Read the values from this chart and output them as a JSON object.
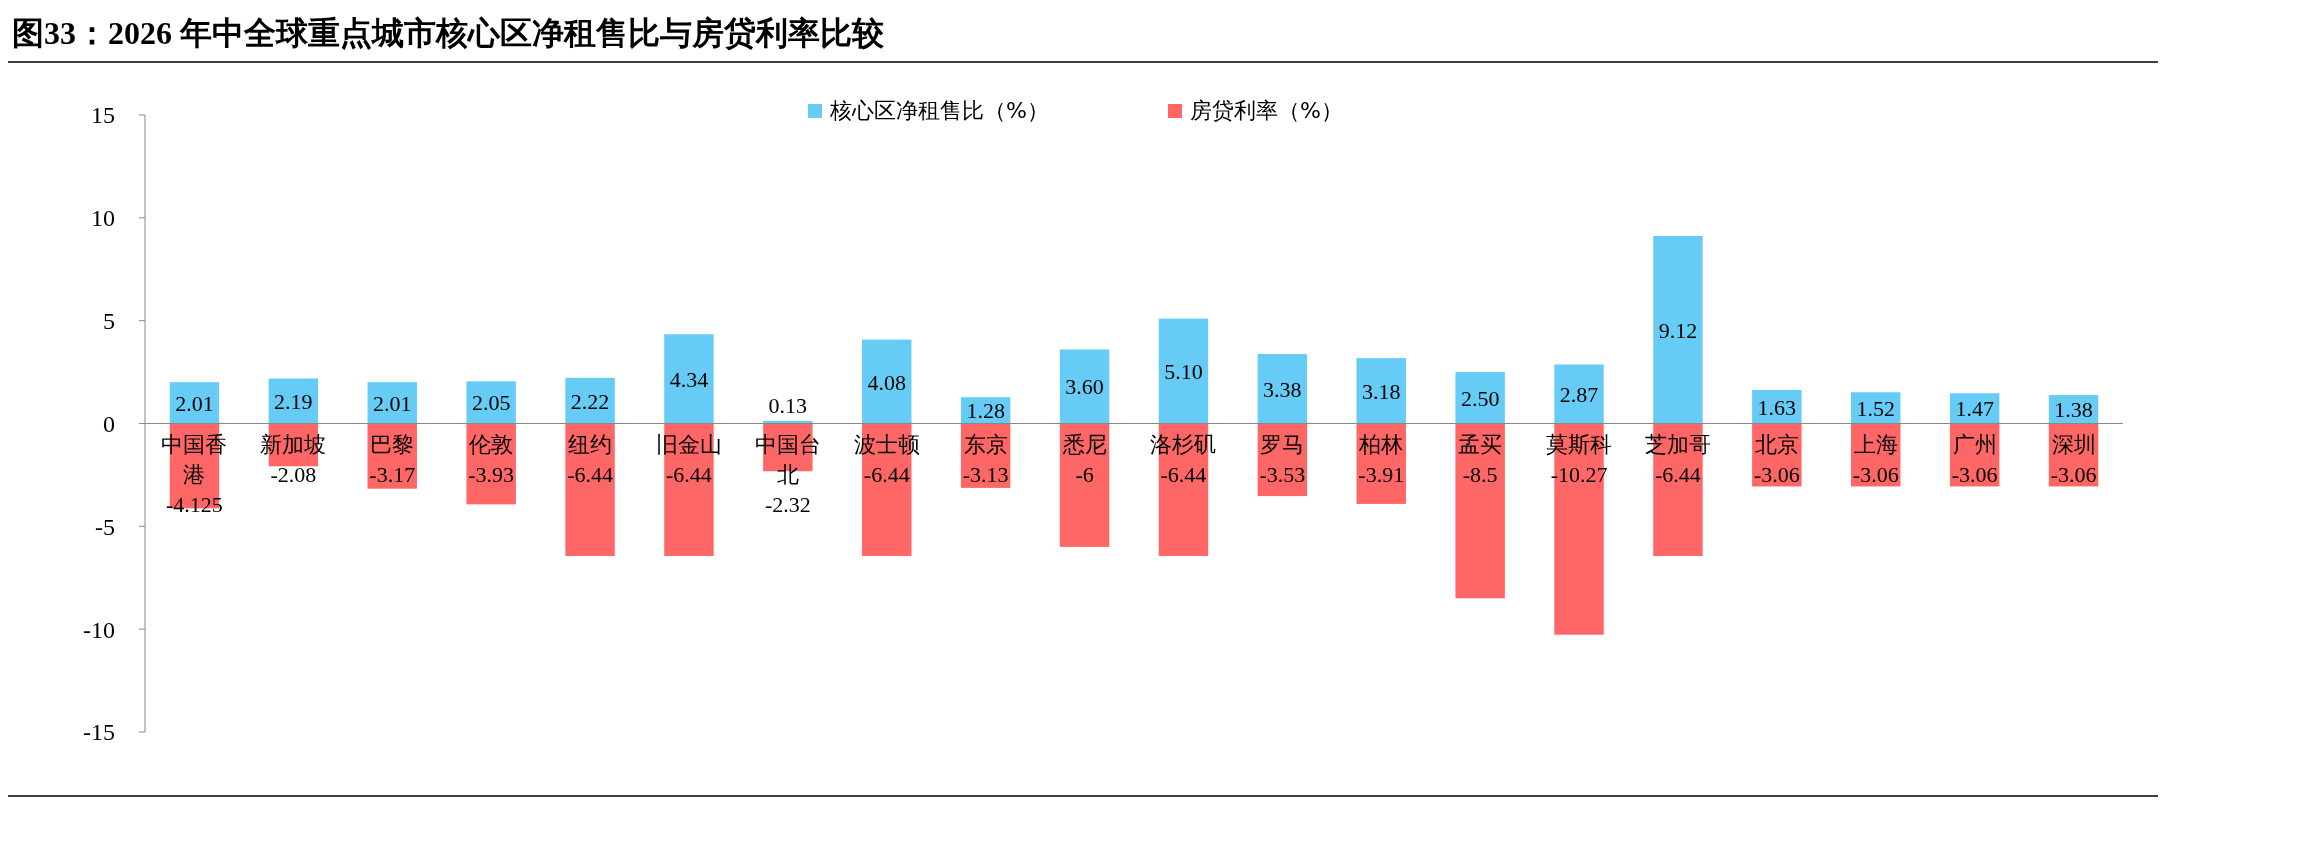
{
  "chart_data": {
    "type": "bar",
    "title": "图33：2026 年中全球重点城市核心区净租售比与房贷利率比较",
    "categories": [
      "中国香港",
      "新加坡",
      "巴黎",
      "伦敦",
      "纽约",
      "旧金山",
      "中国台北",
      "波士顿",
      "东京",
      "悉尼",
      "洛杉矶",
      "罗马",
      "柏林",
      "孟买",
      "莫斯科",
      "芝加哥",
      "北京",
      "上海",
      "广州",
      "深圳"
    ],
    "series": [
      {
        "name": "核心区净租售比（%）",
        "color": "#66ccf5",
        "values": [
          2.01,
          2.19,
          2.01,
          2.05,
          2.22,
          4.34,
          0.13,
          4.08,
          1.28,
          3.6,
          5.1,
          3.38,
          3.18,
          2.5,
          2.87,
          9.12,
          1.63,
          1.52,
          1.47,
          1.38
        ],
        "value_labels": [
          "2.01",
          "2.19",
          "2.01",
          "2.05",
          "2.22",
          "4.34",
          "0.13",
          "4.08",
          "1.28",
          "3.60",
          "5.10",
          "3.38",
          "3.18",
          "2.50",
          "2.87",
          "9.12",
          "1.63",
          "1.52",
          "1.47",
          "1.38"
        ]
      },
      {
        "name": "房贷利率（%）",
        "color": "#ff6666",
        "values": [
          -4.125,
          -2.08,
          -3.17,
          -3.93,
          -6.44,
          -6.44,
          -2.32,
          -6.44,
          -3.13,
          -6,
          -6.44,
          -3.53,
          -3.91,
          -8.5,
          -10.27,
          -6.44,
          -3.06,
          -3.06,
          -3.06,
          -3.06
        ],
        "value_labels": [
          "-4.125",
          "-2.08",
          "-3.17",
          "-3.93",
          "-6.44",
          "-6.44",
          "-2.32",
          "-6.44",
          "-3.13",
          "-6",
          "-6.44",
          "-3.53",
          "-3.91",
          "-8.5",
          "-10.27",
          "-6.44",
          "-3.06",
          "-3.06",
          "-3.06",
          "-3.06"
        ]
      }
    ],
    "stacked": true,
    "ylim": [
      -15,
      15
    ],
    "yticks": [
      -15,
      -10,
      -5,
      0,
      5,
      10,
      15
    ],
    "grid": false,
    "legend": "top"
  }
}
